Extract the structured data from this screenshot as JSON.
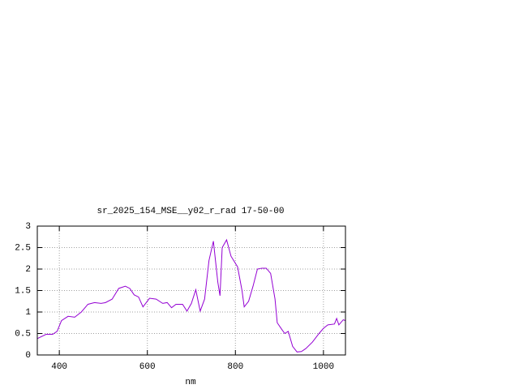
{
  "chart_data": {
    "type": "line",
    "title": "sr_2025_154_MSE__y02_r_rad 17-50-00",
    "x_label": "nm",
    "x": [
      350,
      370,
      385,
      395,
      405,
      420,
      435,
      450,
      465,
      480,
      495,
      505,
      520,
      535,
      550,
      560,
      570,
      580,
      590,
      605,
      620,
      635,
      645,
      655,
      665,
      680,
      690,
      700,
      710,
      720,
      730,
      740,
      750,
      760,
      765,
      770,
      780,
      790,
      805,
      815,
      820,
      830,
      840,
      850,
      860,
      870,
      880,
      890,
      895,
      905,
      912,
      920,
      930,
      940,
      950,
      960,
      975,
      990,
      1000,
      1010,
      1025,
      1030,
      1035,
      1045,
      1050
    ],
    "series": [
      {
        "color": "#9400d3",
        "values": [
          0.38,
          0.48,
          0.48,
          0.55,
          0.8,
          0.9,
          0.88,
          1.0,
          1.18,
          1.22,
          1.2,
          1.22,
          1.3,
          1.55,
          1.6,
          1.55,
          1.4,
          1.35,
          1.12,
          1.32,
          1.3,
          1.2,
          1.22,
          1.1,
          1.18,
          1.18,
          1.02,
          1.2,
          1.52,
          1.02,
          1.3,
          2.2,
          2.65,
          1.7,
          1.38,
          2.5,
          2.68,
          2.3,
          2.05,
          1.5,
          1.12,
          1.25,
          1.6,
          2.0,
          2.02,
          2.02,
          1.9,
          1.3,
          0.75,
          0.6,
          0.5,
          0.55,
          0.2,
          0.07,
          0.08,
          0.15,
          0.3,
          0.5,
          0.62,
          0.7,
          0.72,
          0.85,
          0.7,
          0.82,
          0.8
        ]
      }
    ],
    "xlim": [
      350,
      1050
    ],
    "ylim": [
      0,
      3
    ],
    "xticks": [
      400,
      600,
      800,
      1000
    ],
    "yticks": [
      0,
      0.5,
      1,
      1.5,
      2,
      2.5,
      3
    ],
    "grid": true
  }
}
